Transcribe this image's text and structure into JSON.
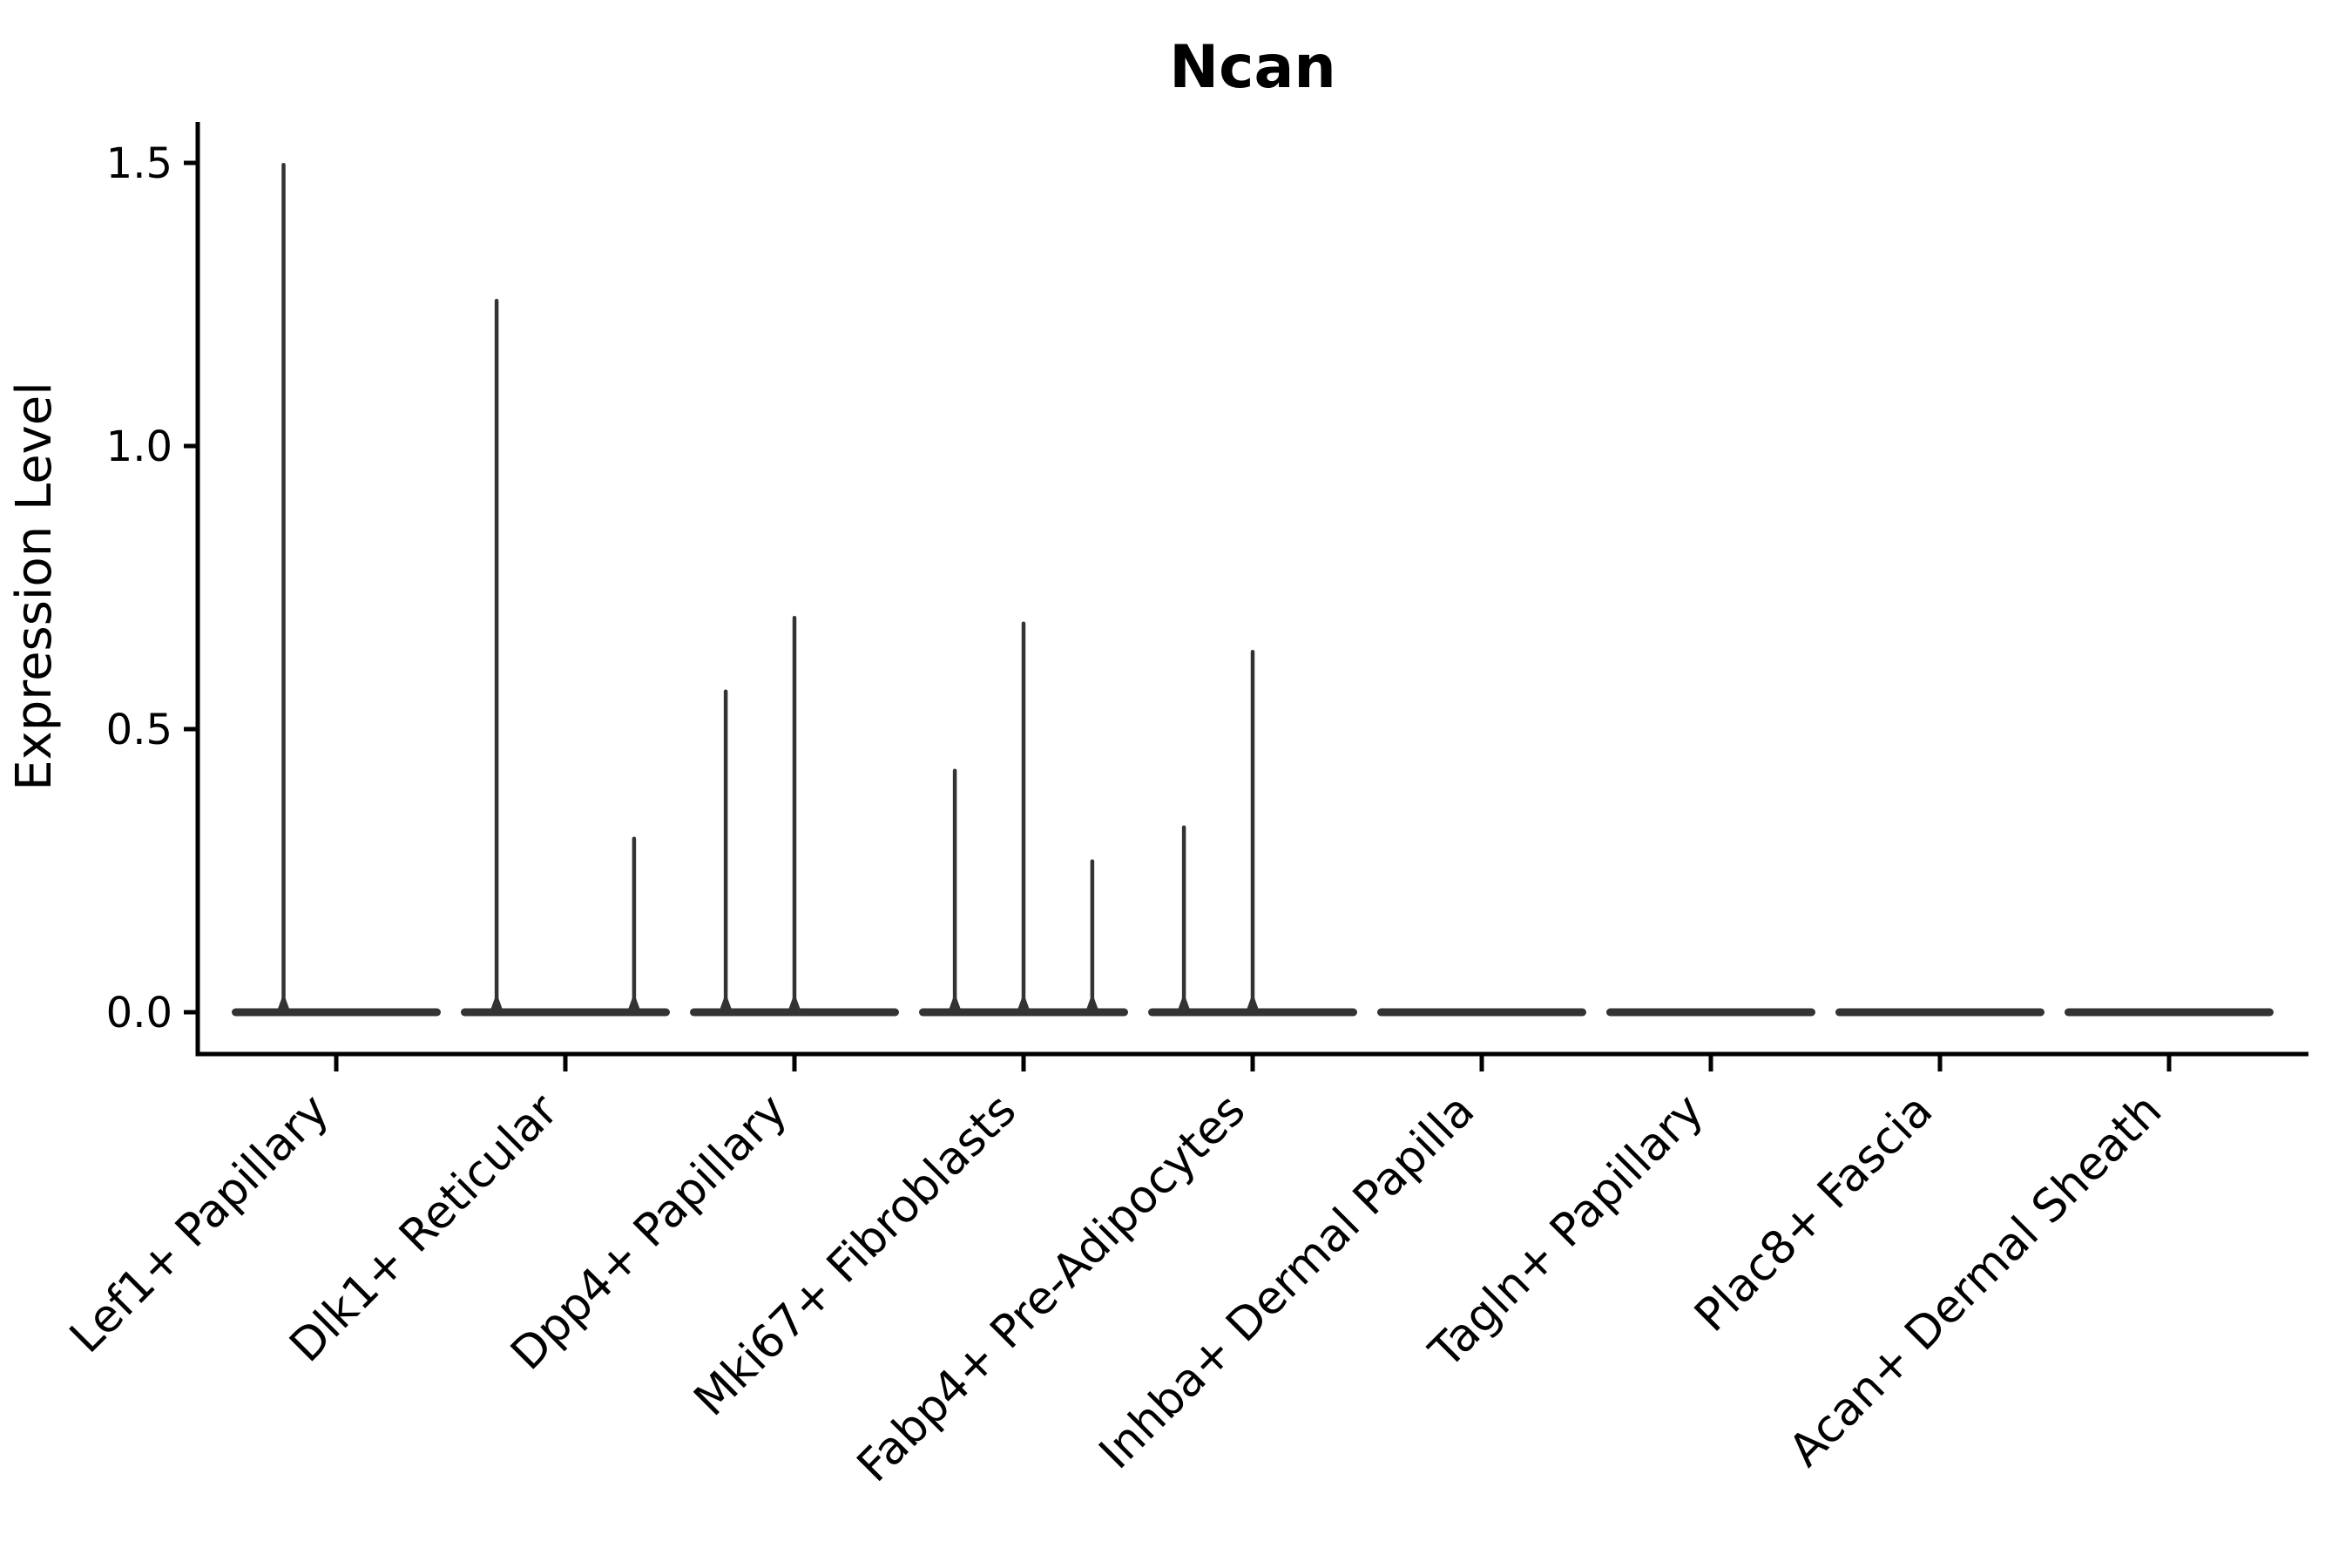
{
  "chart_data": {
    "type": "violin",
    "title": "Ncan",
    "xlabel": "",
    "ylabel": "Expression Level",
    "grid": false,
    "legend": null,
    "ylim": [
      -0.07,
      1.57
    ],
    "yticks": [
      "0.0",
      "0.5",
      "1.0",
      "1.5"
    ],
    "ytick_values": [
      0.0,
      0.5,
      1.0,
      1.5
    ],
    "categories": [
      "Lef1+ Papillary",
      "Dlk1+ Reticular",
      "Dpp4+ Papillary",
      "Mki67+ Fibroblasts",
      "Fabp4+ Pre-Adipocytes",
      "Inhba+ Dermal Papilla",
      "Tagln+ Papillary",
      "Plac8+ Fascia",
      "Acan+ Dermal Sheath"
    ],
    "violins": [
      {
        "category": "Lef1+ Papillary",
        "base_value": 0.0,
        "spikes": [
          {
            "pos": -0.23,
            "value": 1.5
          }
        ]
      },
      {
        "category": "Dlk1+ Reticular",
        "base_value": 0.0,
        "spikes": [
          {
            "pos": -0.3,
            "value": 1.26
          },
          {
            "pos": 0.3,
            "value": 0.31
          }
        ]
      },
      {
        "category": "Dpp4+ Papillary",
        "base_value": 0.0,
        "spikes": [
          {
            "pos": -0.3,
            "value": 0.57
          },
          {
            "pos": 0.0,
            "value": 0.7
          }
        ]
      },
      {
        "category": "Mki67+ Fibroblasts",
        "base_value": 0.0,
        "spikes": [
          {
            "pos": -0.3,
            "value": 0.43
          },
          {
            "pos": 0.0,
            "value": 0.69
          },
          {
            "pos": 0.3,
            "value": 0.27
          }
        ]
      },
      {
        "category": "Fabp4+ Pre-Adipocytes",
        "base_value": 0.0,
        "spikes": [
          {
            "pos": -0.3,
            "value": 0.33
          },
          {
            "pos": 0.0,
            "value": 0.64
          }
        ]
      },
      {
        "category": "Inhba+ Dermal Papilla",
        "base_value": 0.0,
        "spikes": []
      },
      {
        "category": "Tagln+ Papillary",
        "base_value": 0.0,
        "spikes": []
      },
      {
        "category": "Plac8+ Fascia",
        "base_value": 0.0,
        "spikes": []
      },
      {
        "category": "Acan+ Dermal Sheath",
        "base_value": 0.0,
        "spikes": []
      }
    ],
    "colors": {
      "violin": "#333333",
      "axis": "#000000",
      "background": "#ffffff"
    }
  }
}
